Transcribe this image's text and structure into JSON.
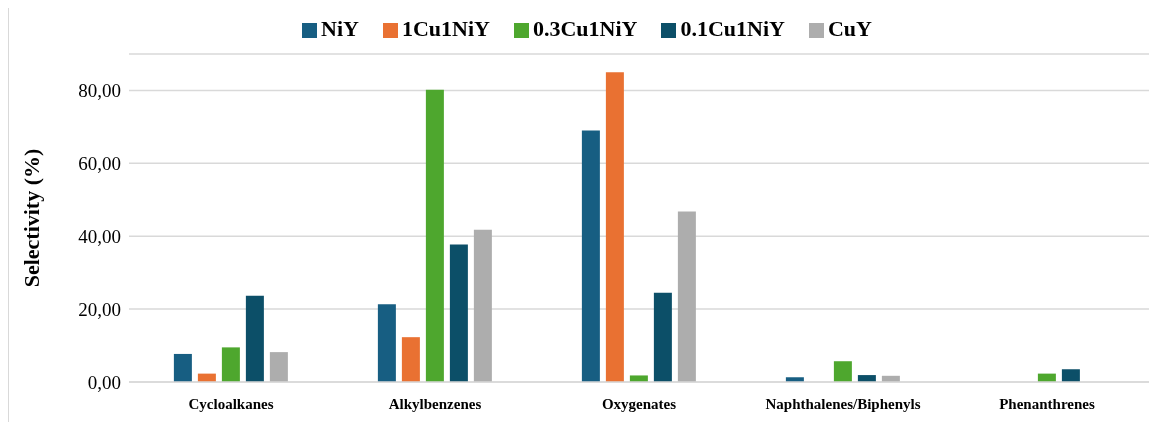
{
  "chart_data": {
    "type": "bar",
    "ylabel": "Selectivity (%)",
    "categories": [
      "Cycloalkanes",
      "Alkylbenzenes",
      "Oxygenates",
      "Naphthalenes/Biphenyls",
      "Phenanthrenes"
    ],
    "series": [
      {
        "name": "NiY",
        "color": "#175e82",
        "values": [
          7.7,
          21.3,
          69.0,
          1.3,
          0
        ]
      },
      {
        "name": "1Cu1NiY",
        "color": "#e97132",
        "values": [
          2.3,
          12.3,
          85.0,
          0,
          0
        ]
      },
      {
        "name": "0.3Cu1NiY",
        "color": "#4ea72e",
        "values": [
          9.5,
          80.2,
          1.8,
          5.7,
          2.3
        ]
      },
      {
        "name": "0.1Cu1NiY",
        "color": "#0c4f68",
        "values": [
          23.7,
          37.7,
          24.5,
          1.9,
          3.5
        ]
      },
      {
        "name": "CuY",
        "color": "#adadad",
        "values": [
          8.2,
          41.8,
          46.8,
          1.7,
          0
        ]
      }
    ],
    "ylim": [
      0,
      90
    ],
    "yticks": [
      {
        "value": 0,
        "label": "0,00"
      },
      {
        "value": 20,
        "label": "20,00"
      },
      {
        "value": 40,
        "label": "40,00"
      },
      {
        "value": 60,
        "label": "60,00"
      },
      {
        "value": 80,
        "label": "80,00"
      }
    ],
    "grid": "y",
    "legend": "top"
  }
}
